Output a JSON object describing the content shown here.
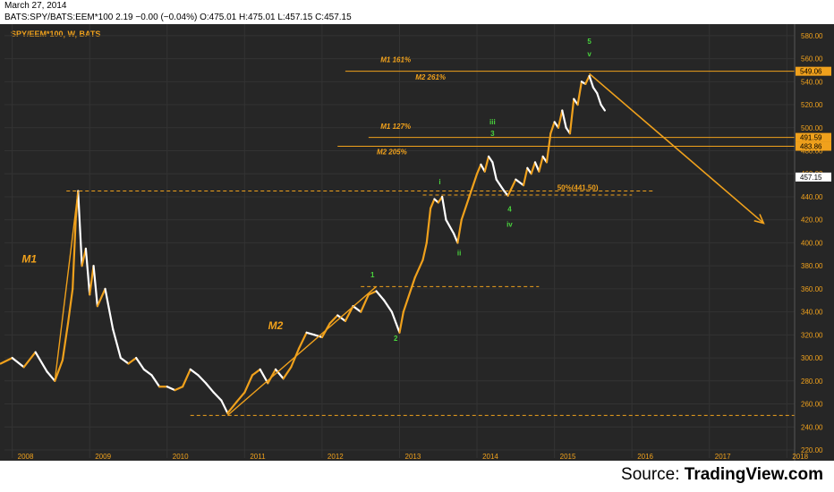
{
  "header": {
    "date": "March 27, 2014",
    "quote": "BATS:SPY/BATS:EEM*100  2.19 −0.00 (−0.04%)  O:475.01  H:475.01  L:457.15  C:457.15"
  },
  "footer": {
    "source_label": "Source:",
    "source_name": "TradingView.com"
  },
  "colors": {
    "background": "#262626",
    "up_bar": "#f0a11c",
    "down_bar": "#ffffff",
    "annotation": "#f0a11c",
    "wave_label": "#49d43d",
    "axis_text": "#f0a11c",
    "current_price_box": "#ffffff"
  },
  "chart_data": {
    "type": "line",
    "title": "SPY/EEM*100, W, BATS",
    "ylim": [
      213,
      590
    ],
    "y_ticks": [
      220,
      240,
      260,
      280,
      300,
      320,
      340,
      360,
      380,
      400,
      420,
      440,
      460,
      480,
      500,
      520,
      540,
      560,
      580
    ],
    "x_range": [
      2007.9,
      2018.1
    ],
    "x_ticks": [
      "2008",
      "2009",
      "2010",
      "2011",
      "2012",
      "2013",
      "2014",
      "2015",
      "2016",
      "2017",
      "2018"
    ],
    "series": [
      {
        "values": [
          [
            2007.85,
            295
          ],
          [
            2008.0,
            300
          ],
          [
            2008.15,
            292
          ],
          [
            2008.3,
            305
          ],
          [
            2008.45,
            288
          ],
          [
            2008.55,
            280
          ],
          [
            2008.65,
            298
          ],
          [
            2008.72,
            330
          ],
          [
            2008.78,
            360
          ],
          [
            2008.82,
            420
          ],
          [
            2008.85,
            445
          ],
          [
            2008.9,
            380
          ],
          [
            2008.95,
            395
          ],
          [
            2009.0,
            355
          ],
          [
            2009.05,
            380
          ],
          [
            2009.1,
            345
          ],
          [
            2009.2,
            360
          ],
          [
            2009.3,
            325
          ],
          [
            2009.4,
            300
          ],
          [
            2009.5,
            295
          ],
          [
            2009.6,
            300
          ],
          [
            2009.7,
            290
          ],
          [
            2009.8,
            285
          ],
          [
            2009.9,
            275
          ],
          [
            2010.0,
            275
          ],
          [
            2010.1,
            272
          ],
          [
            2010.2,
            275
          ],
          [
            2010.3,
            290
          ],
          [
            2010.4,
            285
          ],
          [
            2010.5,
            278
          ],
          [
            2010.6,
            270
          ],
          [
            2010.7,
            263
          ],
          [
            2010.78,
            252
          ],
          [
            2010.9,
            262
          ],
          [
            2011.0,
            270
          ],
          [
            2011.1,
            285
          ],
          [
            2011.2,
            290
          ],
          [
            2011.3,
            278
          ],
          [
            2011.4,
            290
          ],
          [
            2011.5,
            282
          ],
          [
            2011.6,
            292
          ],
          [
            2011.7,
            308
          ],
          [
            2011.8,
            322
          ],
          [
            2011.9,
            320
          ],
          [
            2012.0,
            318
          ],
          [
            2012.1,
            330
          ],
          [
            2012.2,
            337
          ],
          [
            2012.3,
            332
          ],
          [
            2012.4,
            345
          ],
          [
            2012.5,
            340
          ],
          [
            2012.6,
            355
          ],
          [
            2012.7,
            358
          ],
          [
            2012.8,
            350
          ],
          [
            2012.9,
            340
          ],
          [
            2013.0,
            322
          ],
          [
            2013.05,
            340
          ],
          [
            2013.1,
            350
          ],
          [
            2013.2,
            370
          ],
          [
            2013.3,
            385
          ],
          [
            2013.35,
            400
          ],
          [
            2013.4,
            430
          ],
          [
            2013.45,
            438
          ],
          [
            2013.5,
            435
          ],
          [
            2013.55,
            440
          ],
          [
            2013.6,
            420
          ],
          [
            2013.7,
            408
          ],
          [
            2013.75,
            400
          ],
          [
            2013.8,
            420
          ],
          [
            2013.9,
            440
          ],
          [
            2014.0,
            460
          ],
          [
            2014.05,
            468
          ],
          [
            2014.1,
            462
          ],
          [
            2014.15,
            475
          ],
          [
            2014.2,
            470
          ],
          [
            2014.25,
            455
          ],
          [
            2014.3,
            450
          ],
          [
            2014.35,
            445
          ],
          [
            2014.4,
            441
          ],
          [
            2014.5,
            455
          ],
          [
            2014.6,
            450
          ],
          [
            2014.65,
            465
          ],
          [
            2014.7,
            460
          ],
          [
            2014.75,
            470
          ],
          [
            2014.8,
            462
          ],
          [
            2014.85,
            475
          ],
          [
            2014.9,
            470
          ],
          [
            2014.95,
            495
          ],
          [
            2015.0,
            505
          ],
          [
            2015.05,
            500
          ],
          [
            2015.1,
            515
          ],
          [
            2015.15,
            500
          ],
          [
            2015.2,
            495
          ],
          [
            2015.25,
            525
          ],
          [
            2015.3,
            520
          ],
          [
            2015.35,
            540
          ],
          [
            2015.4,
            538
          ],
          [
            2015.45,
            545
          ],
          [
            2015.5,
            535
          ],
          [
            2015.55,
            530
          ],
          [
            2015.6,
            520
          ],
          [
            2015.65,
            515
          ]
        ]
      }
    ],
    "current_price": {
      "label": "457.15",
      "y": 457.15
    },
    "price_labels": [
      {
        "label": "549.06",
        "y": 549.06
      },
      {
        "label": "491.59",
        "y": 491.59
      },
      {
        "label": "483.86",
        "y": 483.86
      }
    ],
    "levels": [
      {
        "name": "M1 161%",
        "y": 549.06,
        "x0": 2012.3,
        "x1": 2018.1
      },
      {
        "name": "M1 127%",
        "y": 491.59,
        "x0": 2012.6,
        "x1": 2018.1
      },
      {
        "name": "M2 205%",
        "y": 483.86,
        "x0": 2012.2,
        "x1": 2018.1
      },
      {
        "name": "",
        "y": 445,
        "x0": 2008.7,
        "x1": 2016.3
      },
      {
        "name": "",
        "y": 441.5,
        "x0": 2013.3,
        "x1": 2016.0
      },
      {
        "name": "",
        "y": 362,
        "x0": 2012.5,
        "x1": 2014.8
      },
      {
        "name": "",
        "y": 250,
        "x0": 2010.3,
        "x1": 2018.1
      }
    ],
    "trendlines": [
      {
        "label": "M1",
        "from": [
          2008.55,
          280
        ],
        "to": [
          2008.85,
          445
        ]
      },
      {
        "label": "M2",
        "from": [
          2010.78,
          250
        ],
        "to": [
          2012.7,
          362
        ]
      }
    ],
    "projection": {
      "from": [
        2015.45,
        547
      ],
      "to": [
        2017.7,
        417
      ]
    },
    "annotations": [
      {
        "text": "M1",
        "x": 2008.22,
        "y": 383,
        "style": "big"
      },
      {
        "text": "M2",
        "x": 2011.4,
        "y": 325,
        "style": "big"
      },
      {
        "text": "M1 161%",
        "x": 2012.95,
        "y": 557,
        "style": "small"
      },
      {
        "text": "M2 261%",
        "x": 2013.4,
        "y": 542,
        "style": "small"
      },
      {
        "text": "M1 127%",
        "x": 2012.95,
        "y": 499,
        "style": "small"
      },
      {
        "text": "M2 205%",
        "x": 2012.9,
        "y": 477,
        "style": "small"
      },
      {
        "text": "50%(441.50)",
        "x": 2015.3,
        "y": 446,
        "style": "label"
      }
    ],
    "wave_labels": [
      {
        "text": "1",
        "x": 2012.65,
        "y": 370
      },
      {
        "text": "2",
        "x": 2012.95,
        "y": 315
      },
      {
        "text": "i",
        "x": 2013.52,
        "y": 451
      },
      {
        "text": "ii",
        "x": 2013.77,
        "y": 389
      },
      {
        "text": "iii",
        "x": 2014.2,
        "y": 503
      },
      {
        "text": "3",
        "x": 2014.2,
        "y": 493
      },
      {
        "text": "4",
        "x": 2014.42,
        "y": 427
      },
      {
        "text": "iv",
        "x": 2014.42,
        "y": 414
      },
      {
        "text": "5",
        "x": 2015.45,
        "y": 573
      },
      {
        "text": "v",
        "x": 2015.45,
        "y": 562
      }
    ]
  }
}
